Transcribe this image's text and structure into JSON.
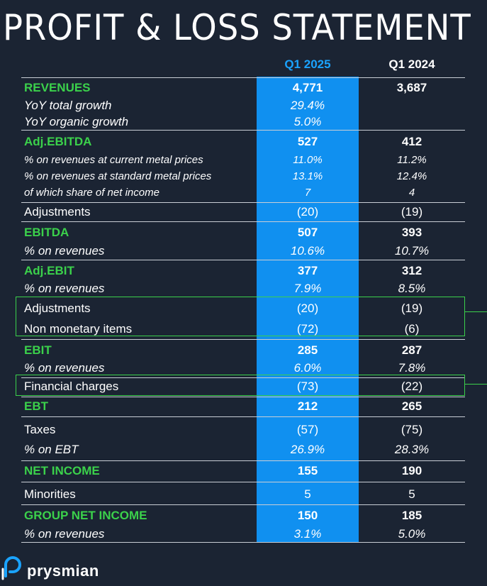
{
  "title": "PROFIT & LOSS STATEMENT",
  "columns": {
    "q1_2025": "Q1 2025",
    "q1_2024": "Q1 2024"
  },
  "rows": [
    {
      "label": "REVENUES",
      "q25": "4,771",
      "q24": "3,687"
    },
    {
      "label": "YoY total growth",
      "q25": "29.4%",
      "q24": ""
    },
    {
      "label": "YoY organic growth",
      "q25": "5.0%",
      "q24": ""
    },
    {
      "label": "Adj.EBITDA",
      "q25": "527",
      "q24": "412"
    },
    {
      "label": "% on revenues at current metal prices",
      "q25": "11.0%",
      "q24": "11.2%"
    },
    {
      "label": "% on revenues at standard metal prices",
      "q25": "13.1%",
      "q24": "12.4%"
    },
    {
      "label": "of which share of net income",
      "q25": "7",
      "q24": "4"
    },
    {
      "label": "Adjustments",
      "q25": "(20)",
      "q24": "(19)"
    },
    {
      "label": "EBITDA",
      "q25": "507",
      "q24": "393"
    },
    {
      "label": "% on revenues",
      "q25": "10.6%",
      "q24": "10.7%"
    },
    {
      "label": "Adj.EBIT",
      "q25": "377",
      "q24": "312"
    },
    {
      "label": "% on revenues",
      "q25": "7.9%",
      "q24": "8.5%"
    },
    {
      "label": "Adjustments",
      "q25": "(20)",
      "q24": "(19)"
    },
    {
      "label": "Non monetary items",
      "q25": "(72)",
      "q24": "(6)"
    },
    {
      "label": "EBIT",
      "q25": "285",
      "q24": "287"
    },
    {
      "label": "% on revenues",
      "q25": "6.0%",
      "q24": "7.8%"
    },
    {
      "label": "Financial charges",
      "q25": "(73)",
      "q24": "(22)"
    },
    {
      "label": "EBT",
      "q25": "212",
      "q24": "265"
    },
    {
      "label": "Taxes",
      "q25": "(57)",
      "q24": "(75)"
    },
    {
      "label": "% on EBT",
      "q25": "26.9%",
      "q24": "28.3%"
    },
    {
      "label": "NET INCOME",
      "q25": "155",
      "q24": "190"
    },
    {
      "label": "Minorities",
      "q25": "5",
      "q24": "5"
    },
    {
      "label": "GROUP NET INCOME",
      "q25": "150",
      "q24": "185"
    },
    {
      "label": "% on revenues",
      "q25": "3.1%",
      "q24": "5.0%"
    }
  ],
  "logo": {
    "text": "prysmian",
    "icon": "prysmian-logo-icon"
  },
  "colors": {
    "background": "#1b2433",
    "accent_blue": "#1090f0",
    "accent_green": "#3bd14b"
  }
}
